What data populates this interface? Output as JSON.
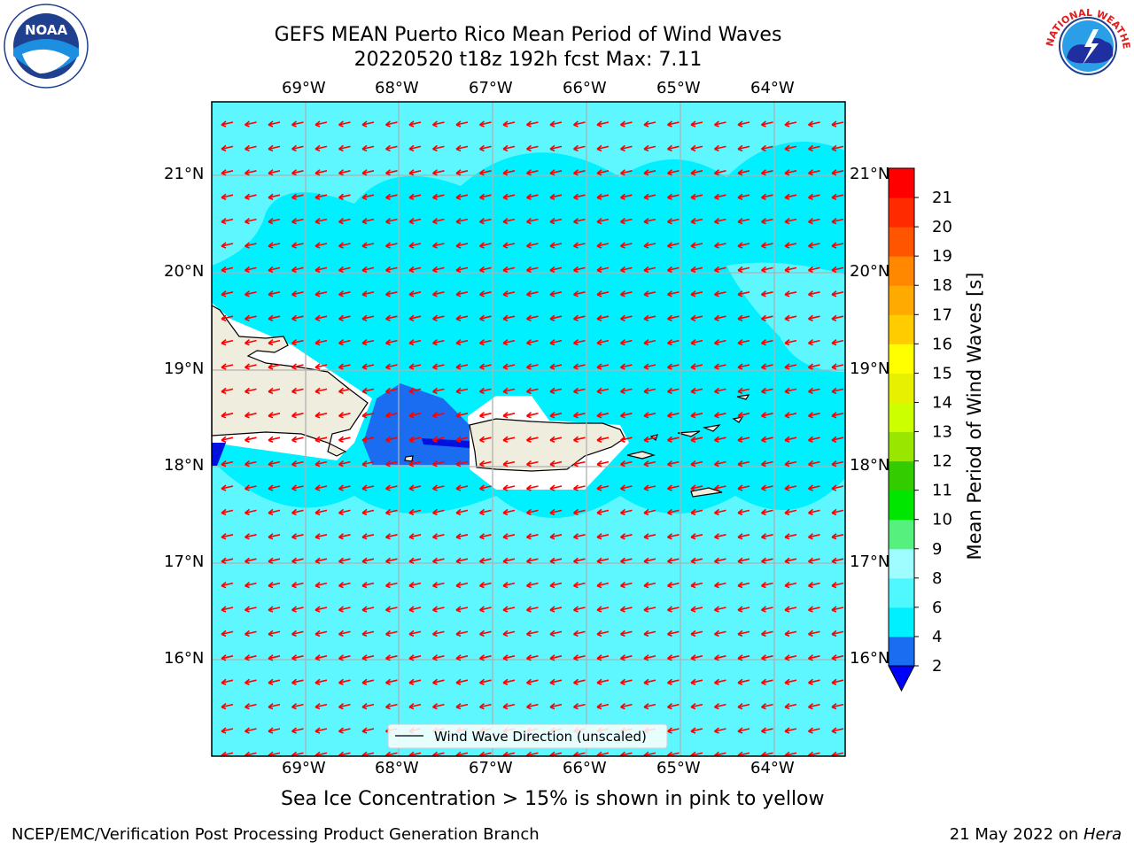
{
  "header": {
    "title_line1": "GEFS MEAN Puerto Rico Mean Period of Wind Waves",
    "title_line2": "20220520 t18z 192h fcst   Max: 7.11"
  },
  "axes": {
    "lon_labels": [
      "69°W",
      "68°W",
      "67°W",
      "66°W",
      "65°W",
      "64°W"
    ],
    "lat_labels": [
      "21°N",
      "20°N",
      "19°N",
      "18°N",
      "17°N",
      "16°N"
    ]
  },
  "legend": {
    "label": "Wind Wave Direction (unscaled)"
  },
  "colorbar": {
    "label": "Mean Period of Wind Waves [s]",
    "ticks": [
      "2",
      "4",
      "6",
      "8",
      "9",
      "10",
      "11",
      "12",
      "13",
      "14",
      "15",
      "16",
      "17",
      "18",
      "19",
      "20",
      "21"
    ],
    "colors": [
      "#1a6cf0",
      "#00f0ff",
      "#4ff8ff",
      "#9ffcff",
      "#55f07d",
      "#00e600",
      "#33cc00",
      "#99e600",
      "#ccff00",
      "#e6f000",
      "#ffff00",
      "#ffcc00",
      "#ffaa00",
      "#ff8800",
      "#ff5500",
      "#ff2a00",
      "#ff0000"
    ],
    "under_color": "#0000ff"
  },
  "map_colors": {
    "ocean": "#00f0ff",
    "ocean_light": "#5ff7ff",
    "coastal": "#1a6cf0",
    "land": "#efedde",
    "arrow": "#ff0000"
  },
  "notes": {
    "sea_ice": "Sea Ice Concentration > 15% is shown in pink to yellow"
  },
  "footer": {
    "left": "NCEP/EMC/Verification Post Processing Product Generation Branch",
    "right_prefix": "21 May 2022 on ",
    "right_machine": "Hera"
  },
  "logos": {
    "left": "NOAA",
    "left_ring": "NATIONAL OCEANIC AND ATMOSPHERIC ADMINISTRATION · U.S. DEPARTMENT OF COMMERCE",
    "right_ring": "NATIONAL WEATHER SERVICE"
  }
}
